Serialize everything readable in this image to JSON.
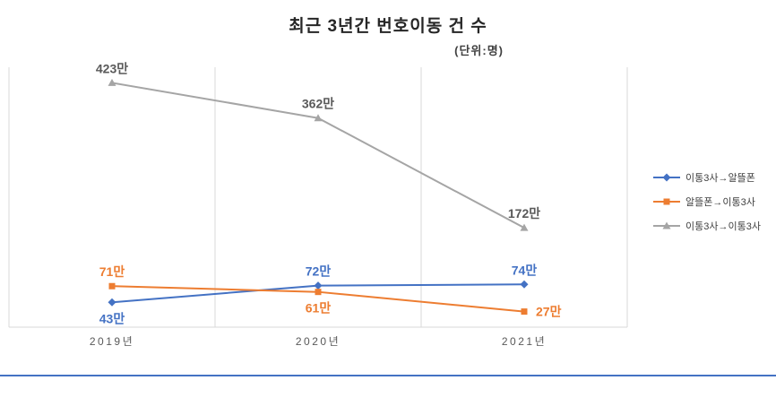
{
  "chart_data": {
    "type": "line",
    "title": "최근 3년간 번호이동 건 수",
    "subtitle": "(단위:명)",
    "categories": [
      "2019년",
      "2020년",
      "2021년"
    ],
    "series": [
      {
        "name": "이통3사→알뜰폰",
        "values": [
          43,
          72,
          74
        ],
        "color": "#4472C4",
        "marker": "diamond",
        "label_color": "#4472C4",
        "label_positions": [
          "below",
          "above",
          "above"
        ]
      },
      {
        "name": "알뜰폰→이통3사",
        "values": [
          71,
          61,
          27
        ],
        "color": "#ED7D31",
        "marker": "square",
        "label_color": "#ED7D31",
        "label_positions": [
          "above",
          "below",
          "right"
        ]
      },
      {
        "name": "이통3사→이통3사",
        "values": [
          423,
          362,
          172
        ],
        "color": "#A5A5A5",
        "marker": "triangle",
        "label_color": "#595959",
        "label_positions": [
          "above",
          "above",
          "above"
        ]
      }
    ],
    "label_suffix": "만",
    "ylim": [
      0,
      450
    ],
    "grid": "vertical",
    "legend_position": "right",
    "axis_label_color": "#595959",
    "gridline_color": "#D9D9D9",
    "bottom_line_color": "#4472C4"
  }
}
